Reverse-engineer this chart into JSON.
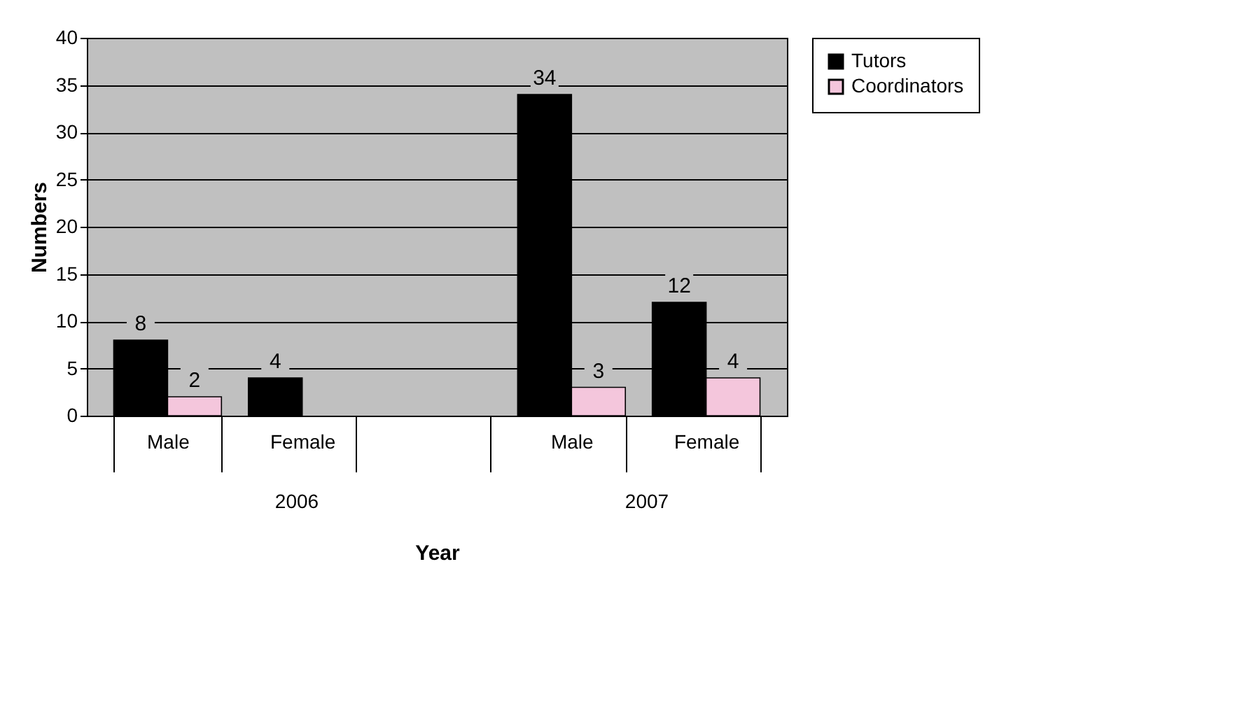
{
  "chart_data": {
    "type": "bar",
    "xlabel": "Year",
    "ylabel": "Numbers",
    "categories": [
      "Male",
      "Female",
      null,
      "Male",
      "Female"
    ],
    "series": [
      {
        "name": "Tutors",
        "color": "#000000",
        "values": [
          8,
          4,
          null,
          34,
          12
        ]
      },
      {
        "name": "Coordinators",
        "color": "#f4c6dc",
        "values": [
          2,
          null,
          null,
          3,
          4
        ]
      }
    ],
    "ylim": [
      0,
      40
    ],
    "yticks": [
      0,
      5,
      10,
      15,
      20,
      25,
      30,
      35,
      40
    ],
    "grid": "y",
    "legend": "right",
    "data_labels": true,
    "annotations": [
      "2006",
      "2007"
    ]
  }
}
